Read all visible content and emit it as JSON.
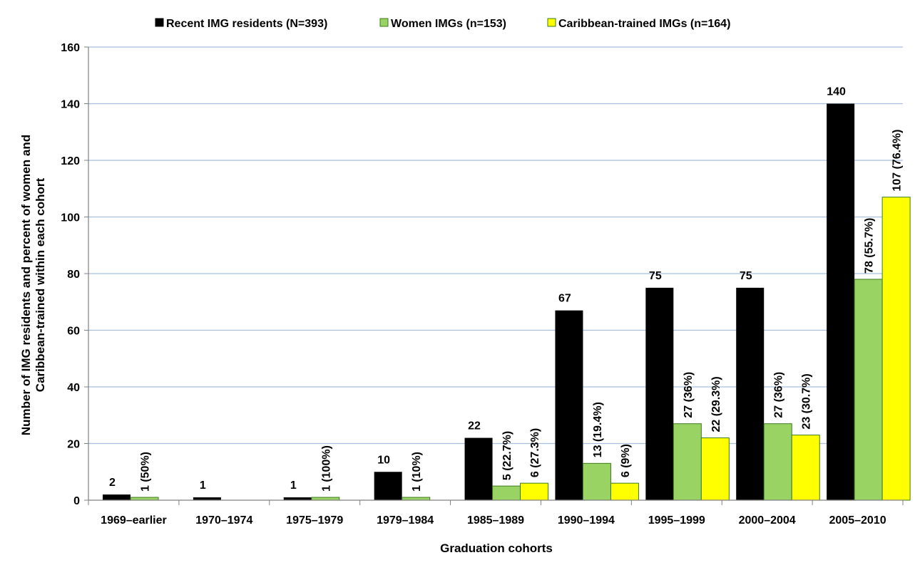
{
  "chart_data": {
    "type": "bar",
    "title": "",
    "xlabel": "Graduation cohorts",
    "ylabel_line1": "Number of IMG residents and percent of women and",
    "ylabel_line2": "Caribbean-trained within each cohort",
    "ylim": [
      0,
      160
    ],
    "yticks": [
      0,
      20,
      40,
      60,
      80,
      100,
      120,
      140,
      160
    ],
    "grid": true,
    "legend_position": "top",
    "categories": [
      "1969–earlier",
      "1970–1974",
      "1975–1979",
      "1979–1984",
      "1985–1989",
      "1990–1994",
      "1995–1999",
      "2000–2004",
      "2005–2010"
    ],
    "series": [
      {
        "name": "Recent IMG residents (N=393)",
        "color": "#000000",
        "values": [
          2,
          1,
          1,
          10,
          22,
          67,
          75,
          75,
          140
        ],
        "labels": [
          "2",
          "1",
          "1",
          "10",
          "22",
          "67",
          "75",
          "75",
          "140"
        ],
        "label_orientation": "horizontal"
      },
      {
        "name": "Women IMGs (n=153)",
        "color": "#99d364",
        "values": [
          1,
          0,
          1,
          1,
          5,
          13,
          27,
          27,
          78
        ],
        "labels": [
          "1 (50%)",
          "",
          "1 (100%)",
          "1 (10%)",
          "5 (22.7%)",
          "13 (19.4%)",
          "27 (36%)",
          "27 (36%)",
          "78 (55.7%)"
        ],
        "label_orientation": "vertical"
      },
      {
        "name": "Caribbean-trained IMGs (n=164)",
        "color": "#ffff00",
        "values": [
          0,
          0,
          0,
          0,
          6,
          6,
          22,
          23,
          107
        ],
        "labels": [
          "",
          "",
          "",
          "",
          "6 (27.3%)",
          "6 (9%)",
          "22 (29.3%)",
          "23 (30.7%)",
          "107 (76.4%)"
        ],
        "label_orientation": "vertical"
      }
    ]
  }
}
